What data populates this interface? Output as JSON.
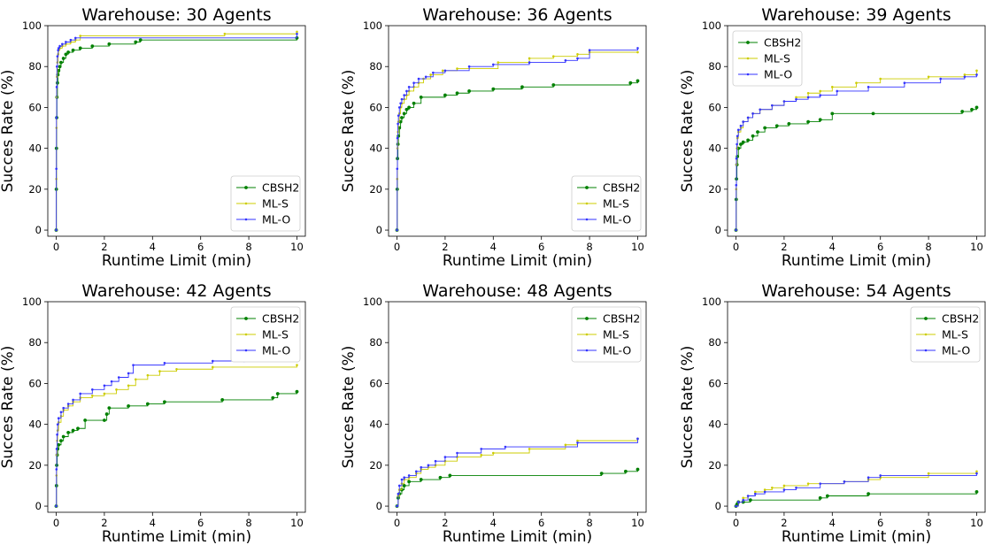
{
  "chart_data": [
    {
      "type": "line",
      "title": "Warehouse: 30 Agents",
      "xlabel": "Runtime Limit (min)",
      "ylabel": "Succes Rate (%)",
      "xlim": [
        -0.35,
        10.35
      ],
      "ylim": [
        -3,
        100
      ],
      "xticks": [
        0,
        2,
        4,
        6,
        8,
        10
      ],
      "yticks": [
        0,
        20,
        40,
        60,
        80,
        100
      ],
      "legend_loc": "lower-right",
      "series": [
        {
          "name": "CBSH2",
          "color": "#008000",
          "x": [
            0,
            0.005,
            0.01,
            0.02,
            0.03,
            0.05,
            0.07,
            0.1,
            0.15,
            0.2,
            0.3,
            0.4,
            0.5,
            0.7,
            1.0,
            1.5,
            2.2,
            3.3,
            3.5,
            10
          ],
          "y": [
            0,
            20,
            40,
            55,
            65,
            72,
            76,
            78,
            80,
            82,
            84,
            86,
            87,
            88,
            89,
            90,
            91,
            92,
            93,
            94
          ]
        },
        {
          "name": "ML-S",
          "color": "#cccc00",
          "x": [
            0,
            0.005,
            0.01,
            0.02,
            0.03,
            0.05,
            0.08,
            0.1,
            0.15,
            0.25,
            0.4,
            0.6,
            0.8,
            1.0,
            7.0,
            10
          ],
          "y": [
            0,
            25,
            50,
            65,
            75,
            82,
            86,
            88,
            89,
            90,
            91,
            92,
            93,
            95,
            96,
            97
          ]
        },
        {
          "name": "ML-O",
          "color": "#3333ff",
          "x": [
            0,
            0.005,
            0.01,
            0.02,
            0.03,
            0.05,
            0.08,
            0.1,
            0.15,
            0.25,
            0.4,
            0.6,
            0.8,
            10
          ],
          "y": [
            0,
            30,
            55,
            70,
            80,
            85,
            88,
            89,
            90,
            91,
            92,
            93,
            94,
            96
          ]
        }
      ]
    },
    {
      "type": "line",
      "title": "Warehouse: 36 Agents",
      "xlabel": "Runtime Limit (min)",
      "ylabel": "Succes Rate (%)",
      "xlim": [
        -0.35,
        10.35
      ],
      "ylim": [
        -3,
        100
      ],
      "xticks": [
        0,
        2,
        4,
        6,
        8,
        10
      ],
      "yticks": [
        0,
        20,
        40,
        60,
        80,
        100
      ],
      "legend_loc": "lower-right",
      "series": [
        {
          "name": "CBSH2",
          "color": "#008000",
          "x": [
            0,
            0.01,
            0.02,
            0.04,
            0.06,
            0.1,
            0.15,
            0.2,
            0.3,
            0.4,
            0.5,
            0.7,
            1.0,
            2.0,
            2.5,
            3.0,
            4.0,
            5.2,
            6.5,
            9.7,
            10
          ],
          "y": [
            0,
            20,
            35,
            42,
            46,
            50,
            53,
            55,
            57,
            59,
            60,
            62,
            65,
            66,
            67,
            68,
            69,
            70,
            71,
            72,
            73
          ]
        },
        {
          "name": "ML-S",
          "color": "#cccc00",
          "x": [
            0,
            0.01,
            0.02,
            0.04,
            0.06,
            0.1,
            0.15,
            0.2,
            0.3,
            0.4,
            0.5,
            0.7,
            0.9,
            1.1,
            1.4,
            1.9,
            2.5,
            4.2,
            5.5,
            6.5,
            7.5,
            8.0,
            10
          ],
          "y": [
            0,
            25,
            40,
            48,
            53,
            57,
            60,
            62,
            64,
            66,
            68,
            70,
            72,
            74,
            76,
            78,
            79,
            82,
            84,
            85,
            86,
            87,
            87
          ]
        },
        {
          "name": "ML-O",
          "color": "#3333ff",
          "x": [
            0,
            0.01,
            0.02,
            0.04,
            0.06,
            0.1,
            0.15,
            0.2,
            0.3,
            0.4,
            0.5,
            0.7,
            0.9,
            1.2,
            1.5,
            2.0,
            3.0,
            4.0,
            5.5,
            7.0,
            7.5,
            8.0,
            10
          ],
          "y": [
            0,
            30,
            45,
            52,
            56,
            60,
            62,
            64,
            66,
            68,
            70,
            72,
            74,
            75,
            77,
            78,
            80,
            81,
            82,
            83,
            84,
            88,
            89
          ]
        }
      ]
    },
    {
      "type": "line",
      "title": "Warehouse: 39 Agents",
      "xlabel": "Runtime Limit (min)",
      "ylabel": "Succes Rate (%)",
      "xlim": [
        -0.35,
        10.35
      ],
      "ylim": [
        -3,
        100
      ],
      "xticks": [
        0,
        2,
        4,
        6,
        8,
        10
      ],
      "yticks": [
        0,
        20,
        40,
        60,
        80,
        100
      ],
      "legend_loc": "upper-left",
      "series": [
        {
          "name": "CBSH2",
          "color": "#008000",
          "x": [
            0,
            0.01,
            0.02,
            0.04,
            0.06,
            0.1,
            0.2,
            0.3,
            0.5,
            0.7,
            0.9,
            1.2,
            1.7,
            2.2,
            3.0,
            3.5,
            4.0,
            5.7,
            9.4,
            9.8,
            10
          ],
          "y": [
            0,
            15,
            25,
            32,
            36,
            40,
            42,
            43,
            44,
            46,
            48,
            50,
            51,
            52,
            53,
            54,
            57,
            57,
            58,
            59,
            60
          ]
        },
        {
          "name": "ML-S",
          "color": "#cccc00",
          "x": [
            0,
            0.01,
            0.02,
            0.04,
            0.06,
            0.1,
            0.2,
            0.3,
            0.5,
            0.7,
            1.0,
            1.5,
            2.0,
            2.5,
            3.0,
            3.5,
            4.0,
            5.0,
            6.0,
            8.0,
            9.5,
            10
          ],
          "y": [
            0,
            20,
            32,
            40,
            45,
            48,
            50,
            53,
            55,
            57,
            59,
            61,
            63,
            65,
            67,
            68,
            70,
            72,
            74,
            75,
            76,
            78
          ]
        },
        {
          "name": "ML-O",
          "color": "#3333ff",
          "x": [
            0,
            0.01,
            0.02,
            0.04,
            0.06,
            0.1,
            0.2,
            0.3,
            0.5,
            0.7,
            1.0,
            1.5,
            2.0,
            2.5,
            3.0,
            3.5,
            4.2,
            5.5,
            7.0,
            8.5,
            9.5,
            10
          ],
          "y": [
            0,
            22,
            35,
            42,
            46,
            49,
            51,
            53,
            55,
            57,
            59,
            61,
            63,
            64,
            65,
            66,
            68,
            70,
            72,
            74,
            75,
            76
          ]
        }
      ]
    },
    {
      "type": "line",
      "title": "Warehouse: 42 Agents",
      "xlabel": "Runtime Limit (min)",
      "ylabel": "Succes Rate (%)",
      "xlim": [
        -0.35,
        10.35
      ],
      "ylim": [
        -3,
        100
      ],
      "xticks": [
        0,
        2,
        4,
        6,
        8,
        10
      ],
      "yticks": [
        0,
        20,
        40,
        60,
        80,
        100
      ],
      "legend_loc": "upper-right",
      "series": [
        {
          "name": "CBSH2",
          "color": "#008000",
          "x": [
            0,
            0.01,
            0.02,
            0.04,
            0.06,
            0.1,
            0.2,
            0.3,
            0.5,
            0.7,
            0.9,
            1.2,
            2.0,
            2.1,
            2.2,
            3.0,
            3.8,
            4.5,
            6.9,
            9.0,
            9.2,
            10
          ],
          "y": [
            0,
            10,
            20,
            25,
            28,
            30,
            32,
            34,
            36,
            37,
            38,
            42,
            42,
            45,
            48,
            49,
            50,
            51,
            52,
            53,
            55,
            56
          ]
        },
        {
          "name": "ML-S",
          "color": "#cccc00",
          "x": [
            0,
            0.01,
            0.02,
            0.04,
            0.06,
            0.1,
            0.2,
            0.3,
            0.5,
            0.7,
            1.0,
            1.5,
            2.0,
            2.5,
            3.0,
            3.3,
            3.8,
            4.3,
            5.0,
            6.5,
            10
          ],
          "y": [
            0,
            15,
            25,
            32,
            37,
            41,
            44,
            47,
            49,
            51,
            53,
            54,
            55,
            57,
            59,
            62,
            64,
            66,
            67,
            68,
            69
          ]
        },
        {
          "name": "ML-O",
          "color": "#3333ff",
          "x": [
            0,
            0.01,
            0.02,
            0.04,
            0.06,
            0.1,
            0.2,
            0.3,
            0.5,
            0.7,
            1.0,
            1.5,
            2.0,
            2.3,
            2.6,
            3.0,
            3.2,
            4.5,
            6.5,
            7.8,
            10
          ],
          "y": [
            0,
            18,
            28,
            35,
            40,
            43,
            46,
            48,
            50,
            52,
            55,
            57,
            59,
            61,
            63,
            65,
            69,
            70,
            71,
            71,
            71
          ]
        }
      ]
    },
    {
      "type": "line",
      "title": "Warehouse: 48 Agents",
      "xlabel": "Runtime Limit (min)",
      "ylabel": "Succes Rate (%)",
      "xlim": [
        -0.35,
        10.35
      ],
      "ylim": [
        -3,
        100
      ],
      "xticks": [
        0,
        2,
        4,
        6,
        8,
        10
      ],
      "yticks": [
        0,
        20,
        40,
        60,
        80,
        100
      ],
      "legend_loc": "upper-right",
      "series": [
        {
          "name": "CBSH2",
          "color": "#008000",
          "x": [
            0,
            0.05,
            0.1,
            0.2,
            0.3,
            0.5,
            1.0,
            1.8,
            2.2,
            8.5,
            9.5,
            10
          ],
          "y": [
            0,
            4,
            6,
            8,
            10,
            12,
            13,
            14,
            15,
            16,
            17,
            18
          ]
        },
        {
          "name": "ML-S",
          "color": "#cccc00",
          "x": [
            0,
            0.05,
            0.1,
            0.2,
            0.3,
            0.5,
            0.8,
            1.0,
            1.3,
            1.6,
            2.0,
            2.5,
            3.5,
            4.0,
            5.5,
            7.0,
            7.5,
            10
          ],
          "y": [
            0,
            5,
            8,
            11,
            13,
            14,
            16,
            18,
            19,
            20,
            22,
            24,
            25,
            26,
            28,
            30,
            32,
            33
          ]
        },
        {
          "name": "ML-O",
          "color": "#3333ff",
          "x": [
            0,
            0.05,
            0.1,
            0.2,
            0.3,
            0.5,
            0.8,
            1.0,
            1.3,
            1.6,
            2.0,
            2.5,
            3.5,
            4.5,
            7.5,
            10
          ],
          "y": [
            0,
            6,
            10,
            13,
            14,
            15,
            17,
            19,
            20,
            22,
            24,
            26,
            28,
            29,
            31,
            33
          ]
        }
      ]
    },
    {
      "type": "line",
      "title": "Warehouse: 54 Agents",
      "xlabel": "Runtime Limit (min)",
      "ylabel": "Succes Rate (%)",
      "xlim": [
        -0.35,
        10.35
      ],
      "ylim": [
        -3,
        100
      ],
      "xticks": [
        0,
        2,
        4,
        6,
        8,
        10
      ],
      "yticks": [
        0,
        20,
        40,
        60,
        80,
        100
      ],
      "legend_loc": "upper-right",
      "series": [
        {
          "name": "CBSH2",
          "color": "#008000",
          "x": [
            0,
            0.05,
            0.1,
            0.3,
            0.6,
            3.5,
            3.8,
            5.5,
            10
          ],
          "y": [
            0,
            1,
            2,
            2,
            3,
            4,
            5,
            6,
            7
          ]
        },
        {
          "name": "ML-S",
          "color": "#cccc00",
          "x": [
            0,
            0.1,
            0.3,
            0.5,
            0.8,
            1.2,
            1.5,
            2.0,
            3.0,
            4.5,
            5.5,
            6.0,
            8.0,
            10
          ],
          "y": [
            0,
            2,
            4,
            5,
            7,
            8,
            9,
            10,
            11,
            12,
            13,
            14,
            16,
            17
          ]
        },
        {
          "name": "ML-O",
          "color": "#3333ff",
          "x": [
            0,
            0.1,
            0.3,
            0.5,
            0.8,
            1.2,
            2.0,
            2.5,
            3.5,
            4.5,
            5.5,
            6.0,
            10
          ],
          "y": [
            0,
            2,
            3,
            5,
            6,
            7,
            8,
            9,
            11,
            12,
            14,
            15,
            16
          ]
        }
      ]
    }
  ]
}
